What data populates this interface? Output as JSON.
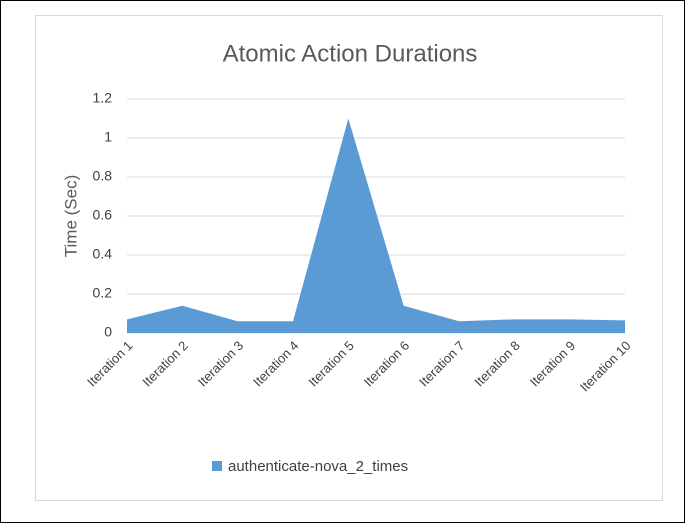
{
  "chart_data": {
    "type": "area",
    "title": "Atomic Action Durations",
    "y_label": "Time (Sec)",
    "categories": [
      "Iteration 1",
      "Iteration 2",
      "Iteration 3",
      "Iteration 4",
      "Iteration 5",
      "Iteration 6",
      "Iteration 7",
      "Iteration 8",
      "Iteration 9",
      "Iteration 10"
    ],
    "series": [
      {
        "name": "authenticate-nova_2_times",
        "color": "#5b9bd5",
        "values": [
          0.07,
          0.14,
          0.06,
          0.06,
          1.1,
          0.14,
          0.06,
          0.07,
          0.07,
          0.065
        ]
      }
    ],
    "ylim": [
      0,
      1.2
    ],
    "yticks": [
      0,
      0.2,
      0.4,
      0.6,
      0.8,
      1,
      1.2
    ],
    "grid": true,
    "legend": "bottom"
  }
}
